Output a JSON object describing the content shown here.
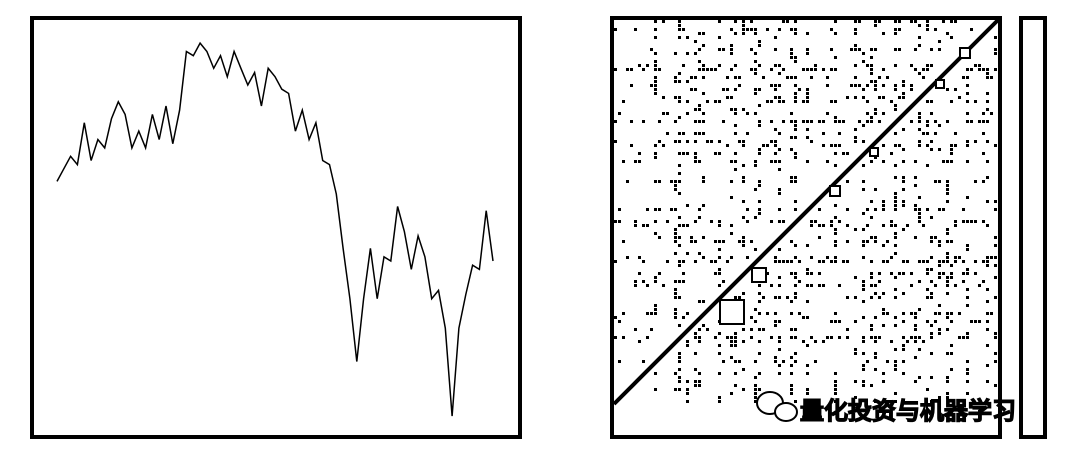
{
  "chart_data": {
    "type": "line",
    "values": [
      61,
      64,
      67,
      65,
      75,
      66,
      71,
      69,
      76,
      80,
      77,
      69,
      73,
      69,
      77,
      71,
      79,
      70,
      78,
      92,
      91,
      94,
      92,
      88,
      91,
      86,
      92,
      88,
      84,
      87,
      79,
      88,
      86,
      83,
      82,
      73,
      78,
      71,
      75,
      66,
      65,
      58,
      45,
      33,
      18,
      33,
      45,
      33,
      43,
      42,
      55,
      49,
      40,
      48,
      43,
      33,
      35,
      26,
      5,
      26,
      34,
      41,
      40,
      54,
      42
    ],
    "ylim": [
      0,
      100
    ],
    "color": "#000000"
  },
  "watermark": "量化投资与机器学习"
}
